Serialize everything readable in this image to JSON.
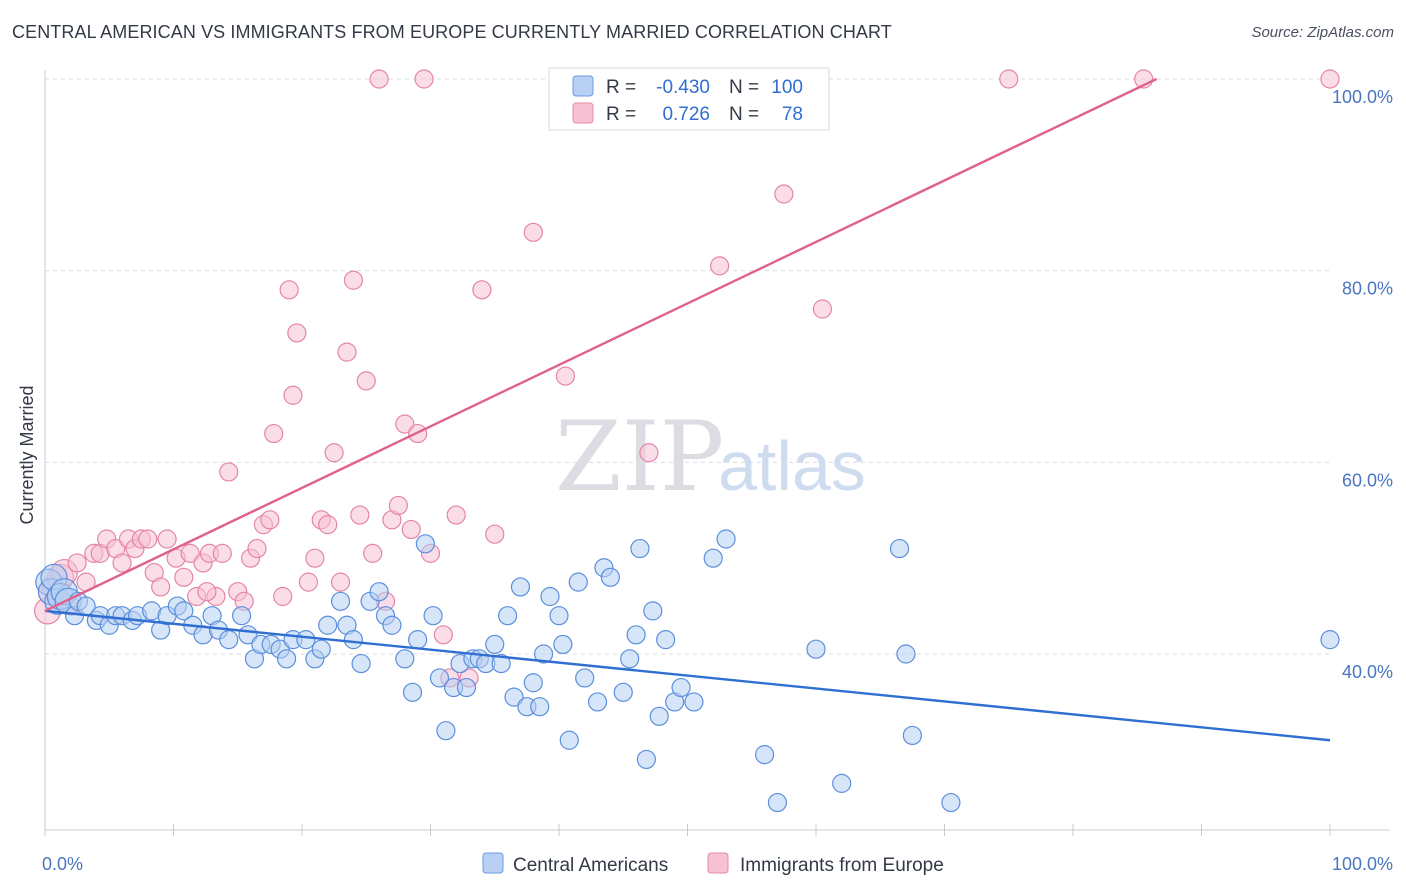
{
  "title": "CENTRAL AMERICAN VS IMMIGRANTS FROM EUROPE CURRENTLY MARRIED CORRELATION CHART",
  "source": "Source: ZipAtlas.com",
  "watermark": {
    "zip": "ZIP",
    "atlas": "atlas"
  },
  "colors": {
    "blue": "#2f6fd1",
    "blue_fill": "#b7d0f3",
    "pink": "#e0608e",
    "pink_fill": "#f7c1d3",
    "label": "#4a76c0",
    "grid": "#d9dbe2"
  },
  "chart_data": {
    "type": "scatter",
    "title": "CENTRAL AMERICAN VS IMMIGRANTS FROM EUROPE CURRENTLY MARRIED CORRELATION CHART",
    "xlabel": "",
    "ylabel": "Currently Married",
    "xlim": [
      0,
      100
    ],
    "ylim": [
      20,
      102
    ],
    "x_tick_labels": [
      {
        "value": 0,
        "label": "0.0%"
      },
      {
        "value": 100,
        "label": "100.0%"
      }
    ],
    "y_tick_labels": [
      {
        "value": 40,
        "label": "40.0%"
      },
      {
        "value": 60,
        "label": "60.0%"
      },
      {
        "value": 80,
        "label": "80.0%"
      },
      {
        "value": 100,
        "label": "100.0%"
      }
    ],
    "grid": true,
    "legend_position": "top-center",
    "legend": [
      {
        "r_label": "R =",
        "r_value": "-0.430",
        "n_label": "N =",
        "n_value": "100"
      },
      {
        "r_label": "R =",
        "r_value": "0.726",
        "n_label": "N =",
        "n_value": "78"
      }
    ],
    "series": [
      {
        "name": "Central Americans",
        "color": "#2f6fd1",
        "trend": {
          "x": [
            0,
            100
          ],
          "y": [
            44.5,
            31.0
          ]
        },
        "points": [
          [
            0.3,
            47.5
          ],
          [
            0.5,
            46.5
          ],
          [
            0.7,
            48
          ],
          [
            1,
            45.5
          ],
          [
            1.2,
            46
          ],
          [
            1.5,
            46.5
          ],
          [
            1.8,
            45.5
          ],
          [
            2.3,
            44
          ],
          [
            2.6,
            45.5
          ],
          [
            3.2,
            45
          ],
          [
            4,
            43.5
          ],
          [
            4.3,
            44
          ],
          [
            5,
            43
          ],
          [
            5.5,
            44
          ],
          [
            6,
            44
          ],
          [
            6.8,
            43.5
          ],
          [
            7.2,
            44
          ],
          [
            8.3,
            44.5
          ],
          [
            9,
            42.5
          ],
          [
            9.5,
            44
          ],
          [
            10.3,
            45
          ],
          [
            10.8,
            44.5
          ],
          [
            11.5,
            43
          ],
          [
            12.3,
            42
          ],
          [
            13,
            44
          ],
          [
            13.5,
            42.5
          ],
          [
            14.3,
            41.5
          ],
          [
            15.3,
            44
          ],
          [
            15.8,
            42
          ],
          [
            16.3,
            39.5
          ],
          [
            16.8,
            41
          ],
          [
            17.6,
            41
          ],
          [
            18.3,
            40.5
          ],
          [
            18.8,
            39.5
          ],
          [
            19.3,
            41.5
          ],
          [
            20.3,
            41.5
          ],
          [
            21,
            39.5
          ],
          [
            21.5,
            40.5
          ],
          [
            22,
            43
          ],
          [
            23,
            45.5
          ],
          [
            23.5,
            43
          ],
          [
            24,
            41.5
          ],
          [
            24.6,
            39
          ],
          [
            25.3,
            45.5
          ],
          [
            26,
            46.5
          ],
          [
            26.5,
            44
          ],
          [
            27,
            43
          ],
          [
            28,
            39.5
          ],
          [
            28.6,
            36
          ],
          [
            29,
            41.5
          ],
          [
            29.6,
            51.5
          ],
          [
            30.2,
            44
          ],
          [
            30.7,
            37.5
          ],
          [
            31.2,
            32
          ],
          [
            31.8,
            36.5
          ],
          [
            32.3,
            39
          ],
          [
            32.8,
            36.5
          ],
          [
            33.3,
            39.5
          ],
          [
            33.8,
            39.5
          ],
          [
            34.3,
            39
          ],
          [
            35,
            41
          ],
          [
            35.5,
            39
          ],
          [
            36,
            44
          ],
          [
            36.5,
            35.5
          ],
          [
            37,
            47
          ],
          [
            37.5,
            34.5
          ],
          [
            38,
            37
          ],
          [
            38.5,
            34.5
          ],
          [
            38.8,
            40
          ],
          [
            39.3,
            46
          ],
          [
            40,
            44
          ],
          [
            40.3,
            41
          ],
          [
            40.8,
            31
          ],
          [
            41.5,
            47.5
          ],
          [
            42,
            37.5
          ],
          [
            43,
            35
          ],
          [
            43.5,
            49
          ],
          [
            44,
            48
          ],
          [
            45,
            36
          ],
          [
            45.5,
            39.5
          ],
          [
            46,
            42
          ],
          [
            46.3,
            51
          ],
          [
            46.8,
            29
          ],
          [
            47.3,
            44.5
          ],
          [
            47.8,
            33.5
          ],
          [
            48.3,
            41.5
          ],
          [
            49,
            35
          ],
          [
            49.5,
            36.5
          ],
          [
            50.5,
            35
          ],
          [
            52,
            50
          ],
          [
            53,
            52
          ],
          [
            56,
            29.5
          ],
          [
            57,
            24.5
          ],
          [
            60,
            40.5
          ],
          [
            62,
            26.5
          ],
          [
            66.5,
            51
          ],
          [
            67,
            40
          ],
          [
            67.5,
            31.5
          ],
          [
            70.5,
            24.5
          ],
          [
            100,
            41.5
          ]
        ]
      },
      {
        "name": "Immigrants from Europe",
        "color": "#e0608e",
        "trend": {
          "x": [
            0,
            86.5
          ],
          "y": [
            44.5,
            100
          ]
        },
        "points": [
          [
            0.2,
            44.5
          ],
          [
            0.5,
            46.5
          ],
          [
            0.8,
            47
          ],
          [
            1.2,
            48
          ],
          [
            1.5,
            48.5
          ],
          [
            2,
            45
          ],
          [
            2.5,
            49.5
          ],
          [
            3.2,
            47.5
          ],
          [
            3.8,
            50.5
          ],
          [
            4.3,
            50.5
          ],
          [
            4.8,
            52
          ],
          [
            5.5,
            51
          ],
          [
            6,
            49.5
          ],
          [
            6.5,
            52
          ],
          [
            7,
            51
          ],
          [
            7.5,
            52
          ],
          [
            8,
            52
          ],
          [
            8.5,
            48.5
          ],
          [
            9,
            47
          ],
          [
            9.5,
            52
          ],
          [
            10.2,
            50
          ],
          [
            10.8,
            48
          ],
          [
            11.3,
            50.5
          ],
          [
            11.8,
            46
          ],
          [
            12.3,
            49.5
          ],
          [
            12.8,
            50.5
          ],
          [
            13.3,
            46
          ],
          [
            13.8,
            50.5
          ],
          [
            14.3,
            59
          ],
          [
            15,
            46.5
          ],
          [
            15.5,
            45.5
          ],
          [
            16,
            50
          ],
          [
            16.5,
            51
          ],
          [
            17,
            53.5
          ],
          [
            17.5,
            54
          ],
          [
            17.8,
            63
          ],
          [
            18.5,
            46
          ],
          [
            19,
            78
          ],
          [
            19.3,
            67
          ],
          [
            19.6,
            73.5
          ],
          [
            20.5,
            47.5
          ],
          [
            21,
            50
          ],
          [
            21.5,
            54
          ],
          [
            22,
            53.5
          ],
          [
            22.5,
            61
          ],
          [
            23,
            47.5
          ],
          [
            23.5,
            71.5
          ],
          [
            24,
            79
          ],
          [
            24.5,
            54.5
          ],
          [
            25,
            68.5
          ],
          [
            25.5,
            50.5
          ],
          [
            26,
            100
          ],
          [
            26.5,
            45.5
          ],
          [
            27,
            54
          ],
          [
            27.5,
            55.5
          ],
          [
            28,
            64
          ],
          [
            28.5,
            53
          ],
          [
            29,
            63
          ],
          [
            29.5,
            100
          ],
          [
            30,
            50.5
          ],
          [
            31,
            42
          ],
          [
            31.5,
            37.5
          ],
          [
            32,
            54.5
          ],
          [
            33,
            37.5
          ],
          [
            34,
            78
          ],
          [
            35,
            52.5
          ],
          [
            38,
            84
          ],
          [
            40.5,
            69
          ],
          [
            44,
            100
          ],
          [
            47,
            61
          ],
          [
            50,
            100
          ],
          [
            52.5,
            80.5
          ],
          [
            57.5,
            88
          ],
          [
            60.5,
            76
          ],
          [
            75,
            100
          ],
          [
            85.5,
            100
          ],
          [
            100,
            100
          ],
          [
            12.6,
            46.5
          ]
        ]
      }
    ]
  }
}
